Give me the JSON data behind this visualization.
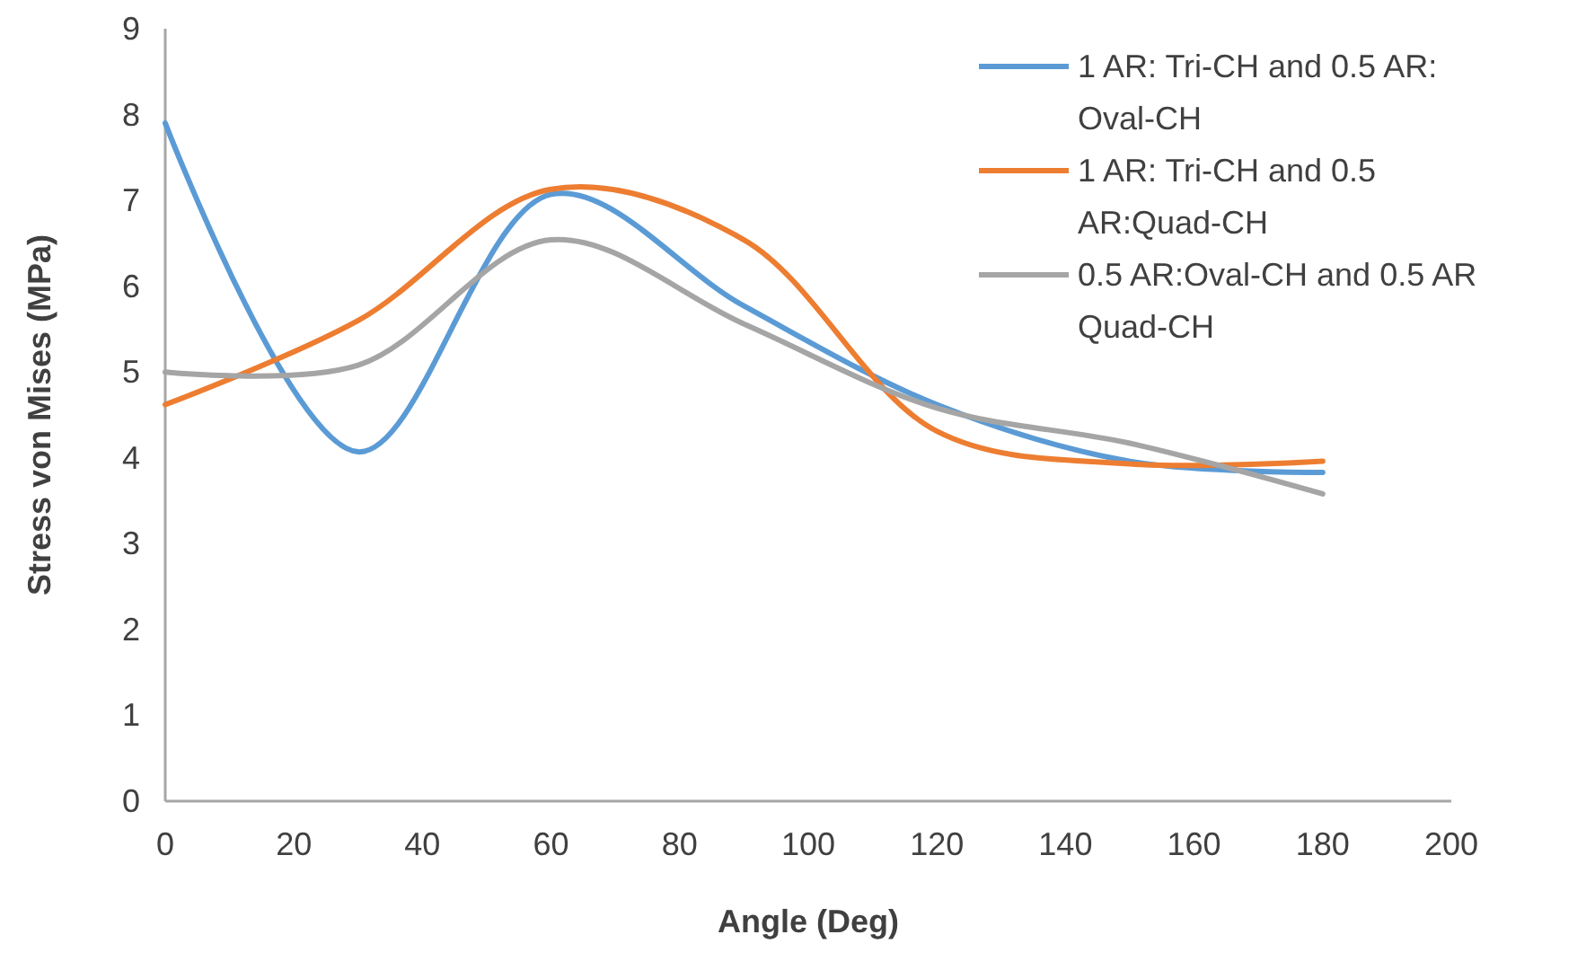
{
  "chart_data": {
    "type": "line",
    "xlabel": "Angle (Deg)",
    "ylabel": "Stress von Mises (MPa)",
    "x": [
      0,
      30,
      60,
      90,
      120,
      150,
      180
    ],
    "series": [
      {
        "name": "1 AR: Tri-CH and 0.5 AR: Oval-CH",
        "color": "#5b9bd5",
        "values": [
          7.9,
          4.07,
          7.07,
          5.77,
          4.62,
          3.96,
          3.83
        ]
      },
      {
        "name": "1 AR: Tri-CH and 0.5 AR:Quad-CH",
        "color": "#ed7d31",
        "values": [
          4.62,
          5.6,
          7.13,
          6.54,
          4.31,
          3.93,
          3.96
        ]
      },
      {
        "name": "0.5 AR:Oval-CH and 0.5 AR Quad-CH",
        "color": "#a5a5a5",
        "values": [
          5.0,
          5.08,
          6.54,
          5.56,
          4.58,
          4.17,
          3.58
        ]
      }
    ],
    "xlim": [
      0,
      200
    ],
    "xticks": [
      0,
      20,
      40,
      60,
      80,
      100,
      120,
      140,
      160,
      180,
      200
    ],
    "ylim": [
      0,
      9
    ],
    "yticks": [
      0,
      1,
      2,
      3,
      4,
      5,
      6,
      7,
      8,
      9
    ],
    "grid": false,
    "legend": "top right",
    "marker": "none",
    "line_style": "solid"
  }
}
